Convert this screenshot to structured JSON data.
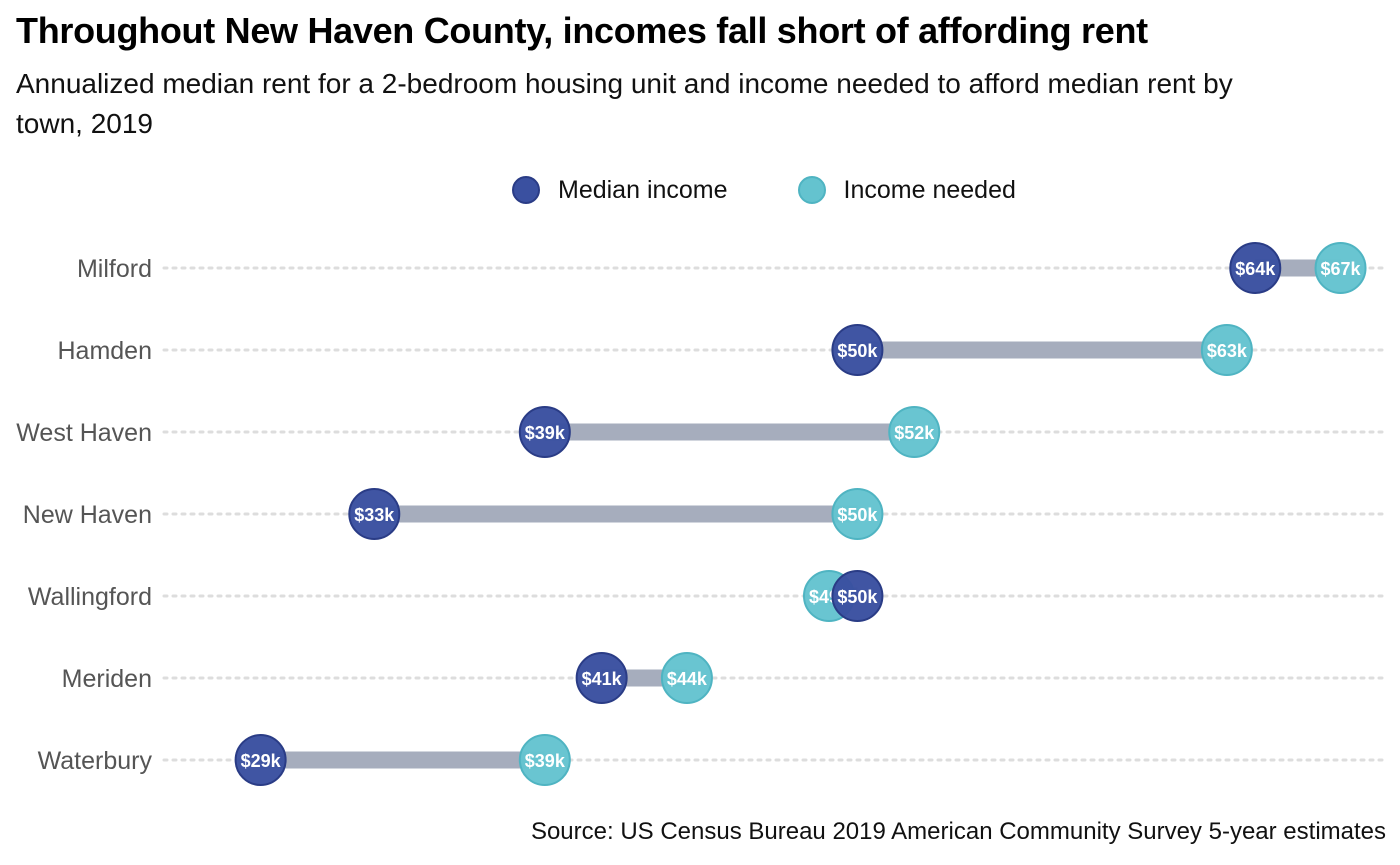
{
  "title": "Throughout New Haven County, incomes fall short of affording rent",
  "subtitle": "Annualized median rent for a 2-bedroom housing unit and income needed to afford median rent by town, 2019",
  "source": "Source: US Census Bureau 2019 American Community Survey 5-year estimates",
  "legend": {
    "median_income": "Median income",
    "income_needed": "Income needed"
  },
  "colors": {
    "median_income": "#3a50a0",
    "median_income_stroke": "#2a3c86",
    "income_needed": "#64c3cf",
    "income_needed_stroke": "#4fb4c2",
    "connector": "#a6adbd",
    "gridline": "#dddddd"
  },
  "chart_data": {
    "type": "dumbbell",
    "title": "Throughout New Haven County, incomes fall short of affording rent",
    "subtitle": "Annualized median rent for a 2-bedroom housing unit and income needed to afford median rent by town, 2019",
    "categories": [
      "Milford",
      "Hamden",
      "West Haven",
      "New Haven",
      "Wallingford",
      "Meriden",
      "Waterbury"
    ],
    "series": [
      {
        "name": "Median income",
        "values": [
          64,
          50,
          39,
          33,
          50,
          41,
          29
        ],
        "labels": [
          "$64k",
          "$50k",
          "$39k",
          "$33k",
          "$50k",
          "$41k",
          "$29k"
        ]
      },
      {
        "name": "Income needed",
        "values": [
          67,
          63,
          52,
          50,
          49,
          44,
          39
        ],
        "labels": [
          "$67k",
          "$63k",
          "$52k",
          "$50k",
          "$49k",
          "$44k",
          "$39k"
        ]
      }
    ],
    "value_unit": "thousands of dollars",
    "xlim": [
      25.6,
      68.6
    ],
    "x_axis_visible": false,
    "grid": "dotted horizontal row lines",
    "legend_position": "top-center"
  }
}
